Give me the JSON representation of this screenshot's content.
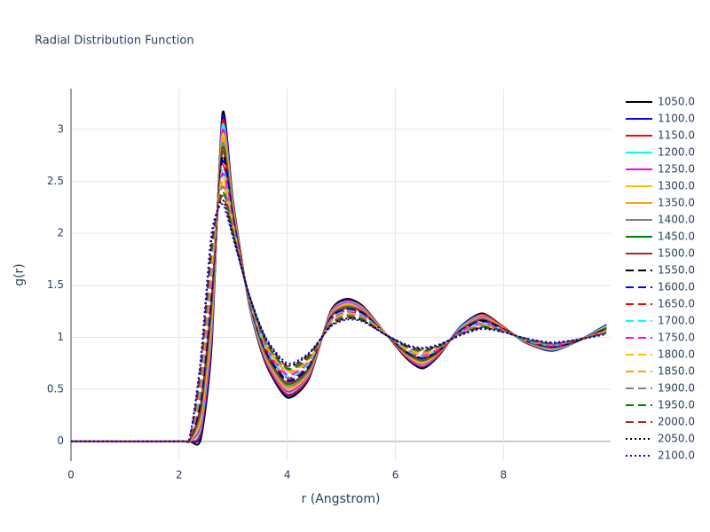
{
  "chart_data": {
    "type": "line",
    "title": "Radial Distribution Function",
    "x_label": "r (Angstrom)",
    "y_label": "g(r)",
    "xlim": [
      0,
      9.98
    ],
    "ylim": [
      -0.19,
      3.39
    ],
    "xticks": [
      0,
      2,
      4,
      6,
      8
    ],
    "yticks": [
      0,
      0.5,
      1,
      1.5,
      2,
      2.5,
      3
    ],
    "grid": true,
    "legend": "right",
    "x": [
      0,
      2,
      2.2,
      2.4,
      2.6,
      2.8,
      3.0,
      3.3,
      3.6,
      4.0,
      4.4,
      4.8,
      5.1,
      5.4,
      5.8,
      6.2,
      6.5,
      6.8,
      7.2,
      7.6,
      8.0,
      8.4,
      8.9,
      9.4,
      9.9
    ],
    "series": [
      {
        "name": "1050.0",
        "color": "#000000",
        "dash": "solid",
        "values": [
          0,
          0,
          0,
          0.02,
          0.9,
          3.15,
          2.3,
          1.3,
          0.75,
          0.42,
          0.6,
          1.25,
          1.37,
          1.3,
          1.05,
          0.8,
          0.7,
          0.82,
          1.1,
          1.23,
          1.1,
          0.95,
          0.87,
          0.97,
          1.12
        ]
      },
      {
        "name": "1100.0",
        "color": "#0000ff",
        "dash": "solid",
        "values": [
          0,
          0,
          0,
          0.06,
          0.95,
          3.11,
          2.28,
          1.3,
          0.76,
          0.44,
          0.61,
          1.24,
          1.36,
          1.29,
          1.05,
          0.81,
          0.71,
          0.83,
          1.1,
          1.22,
          1.1,
          0.95,
          0.87,
          0.97,
          1.12
        ]
      },
      {
        "name": "1150.0",
        "color": "#ff0000",
        "dash": "solid",
        "values": [
          0,
          0,
          0,
          0.09,
          1.0,
          3.07,
          2.27,
          1.31,
          0.77,
          0.45,
          0.62,
          1.24,
          1.35,
          1.29,
          1.05,
          0.81,
          0.72,
          0.83,
          1.09,
          1.22,
          1.1,
          0.95,
          0.88,
          0.97,
          1.11
        ]
      },
      {
        "name": "1200.0",
        "color": "#00ffff",
        "dash": "solid",
        "values": [
          0,
          0,
          0.01,
          0.13,
          1.06,
          3.03,
          2.25,
          1.31,
          0.79,
          0.47,
          0.64,
          1.23,
          1.34,
          1.28,
          1.05,
          0.82,
          0.73,
          0.84,
          1.09,
          1.21,
          1.09,
          0.96,
          0.88,
          0.97,
          1.11
        ]
      },
      {
        "name": "1250.0",
        "color": "#ff00ff",
        "dash": "solid",
        "values": [
          0,
          0,
          0.01,
          0.17,
          1.11,
          2.98,
          2.23,
          1.32,
          0.8,
          0.48,
          0.65,
          1.22,
          1.33,
          1.27,
          1.05,
          0.82,
          0.74,
          0.84,
          1.08,
          1.2,
          1.09,
          0.96,
          0.89,
          0.97,
          1.1
        ]
      },
      {
        "name": "1300.0",
        "color": "#ffc000",
        "dash": "solid",
        "values": [
          0,
          0,
          0.01,
          0.21,
          1.16,
          2.94,
          2.22,
          1.32,
          0.81,
          0.5,
          0.66,
          1.21,
          1.32,
          1.26,
          1.05,
          0.83,
          0.75,
          0.85,
          1.08,
          1.19,
          1.09,
          0.96,
          0.89,
          0.97,
          1.1
        ]
      },
      {
        "name": "1350.0",
        "color": "#ffa500",
        "dash": "solid",
        "values": [
          0,
          0,
          0.01,
          0.24,
          1.21,
          2.9,
          2.2,
          1.33,
          0.82,
          0.51,
          0.67,
          1.21,
          1.31,
          1.26,
          1.04,
          0.84,
          0.76,
          0.85,
          1.08,
          1.19,
          1.09,
          0.96,
          0.89,
          0.97,
          1.09
        ]
      },
      {
        "name": "1400.0",
        "color": "#808080",
        "dash": "solid",
        "values": [
          0,
          0,
          0.02,
          0.28,
          1.27,
          2.86,
          2.18,
          1.33,
          0.83,
          0.53,
          0.68,
          1.2,
          1.3,
          1.25,
          1.04,
          0.84,
          0.77,
          0.86,
          1.07,
          1.18,
          1.08,
          0.96,
          0.9,
          0.97,
          1.09
        ]
      },
      {
        "name": "1450.0",
        "color": "#008000",
        "dash": "solid",
        "values": [
          0,
          0,
          0.02,
          0.32,
          1.32,
          2.82,
          2.17,
          1.34,
          0.85,
          0.55,
          0.7,
          1.19,
          1.29,
          1.24,
          1.04,
          0.85,
          0.78,
          0.86,
          1.07,
          1.17,
          1.08,
          0.97,
          0.9,
          0.97,
          1.09
        ]
      },
      {
        "name": "1500.0",
        "color": "#a52a2a",
        "dash": "solid",
        "values": [
          0,
          0,
          0.02,
          0.35,
          1.37,
          2.78,
          2.15,
          1.34,
          0.86,
          0.56,
          0.71,
          1.19,
          1.28,
          1.24,
          1.04,
          0.86,
          0.79,
          0.87,
          1.07,
          1.17,
          1.08,
          0.97,
          0.9,
          0.97,
          1.08
        ]
      },
      {
        "name": "1550.0",
        "color": "#000000",
        "dash": "dash",
        "values": [
          0,
          0,
          0.02,
          0.39,
          1.42,
          2.74,
          2.13,
          1.35,
          0.87,
          0.58,
          0.72,
          1.18,
          1.27,
          1.23,
          1.04,
          0.86,
          0.8,
          0.87,
          1.06,
          1.16,
          1.08,
          0.97,
          0.91,
          0.97,
          1.08
        ]
      },
      {
        "name": "1600.0",
        "color": "#0000ff",
        "dash": "dash",
        "values": [
          0,
          0,
          0.03,
          0.43,
          1.48,
          2.69,
          2.12,
          1.35,
          0.88,
          0.59,
          0.73,
          1.17,
          1.27,
          1.22,
          1.04,
          0.87,
          0.8,
          0.88,
          1.06,
          1.15,
          1.07,
          0.97,
          0.91,
          0.98,
          1.07
        ]
      },
      {
        "name": "1650.0",
        "color": "#ff0000",
        "dash": "dash",
        "values": [
          0,
          0,
          0.03,
          0.47,
          1.53,
          2.65,
          2.1,
          1.36,
          0.89,
          0.61,
          0.74,
          1.16,
          1.26,
          1.21,
          1.04,
          0.87,
          0.81,
          0.88,
          1.05,
          1.14,
          1.07,
          0.97,
          0.92,
          0.98,
          1.07
        ]
      },
      {
        "name": "1700.0",
        "color": "#00ffff",
        "dash": "dash",
        "values": [
          0,
          0,
          0.03,
          0.5,
          1.58,
          2.61,
          2.08,
          1.36,
          0.9,
          0.62,
          0.75,
          1.16,
          1.25,
          1.21,
          1.04,
          0.88,
          0.82,
          0.89,
          1.05,
          1.14,
          1.07,
          0.97,
          0.92,
          0.98,
          1.06
        ]
      },
      {
        "name": "1750.0",
        "color": "#ff00ff",
        "dash": "dash",
        "values": [
          0,
          0,
          0.03,
          0.54,
          1.63,
          2.57,
          2.07,
          1.37,
          0.92,
          0.64,
          0.77,
          1.15,
          1.24,
          1.2,
          1.04,
          0.89,
          0.83,
          0.89,
          1.05,
          1.13,
          1.07,
          0.98,
          0.92,
          0.98,
          1.06
        ]
      },
      {
        "name": "1800.0",
        "color": "#ffc000",
        "dash": "dash",
        "values": [
          0,
          0,
          0.04,
          0.58,
          1.69,
          2.53,
          2.05,
          1.37,
          0.93,
          0.66,
          0.78,
          1.14,
          1.23,
          1.19,
          1.04,
          0.89,
          0.84,
          0.9,
          1.04,
          1.12,
          1.06,
          0.98,
          0.93,
          0.98,
          1.06
        ]
      },
      {
        "name": "1850.0",
        "color": "#ffa500",
        "dash": "dash",
        "values": [
          0,
          0,
          0.04,
          0.61,
          1.74,
          2.49,
          2.03,
          1.38,
          0.94,
          0.67,
          0.79,
          1.14,
          1.22,
          1.19,
          1.03,
          0.9,
          0.85,
          0.9,
          1.04,
          1.12,
          1.06,
          0.98,
          0.93,
          0.98,
          1.05
        ]
      },
      {
        "name": "1900.0",
        "color": "#808080",
        "dash": "dash",
        "values": [
          0,
          0,
          0.04,
          0.65,
          1.79,
          2.45,
          2.02,
          1.38,
          0.95,
          0.69,
          0.8,
          1.13,
          1.21,
          1.18,
          1.03,
          0.91,
          0.86,
          0.91,
          1.04,
          1.11,
          1.06,
          0.98,
          0.93,
          0.98,
          1.05
        ]
      },
      {
        "name": "1950.0",
        "color": "#008000",
        "dash": "dash",
        "values": [
          0,
          0,
          0.04,
          0.69,
          1.84,
          2.4,
          2.0,
          1.39,
          0.96,
          0.7,
          0.81,
          1.12,
          1.2,
          1.17,
          1.03,
          0.91,
          0.87,
          0.91,
          1.03,
          1.1,
          1.06,
          0.98,
          0.94,
          0.98,
          1.04
        ]
      },
      {
        "name": "2000.0",
        "color": "#a52a2a",
        "dash": "dash",
        "values": [
          0,
          0,
          0.05,
          0.73,
          1.9,
          2.36,
          1.98,
          1.39,
          0.98,
          0.72,
          0.83,
          1.11,
          1.19,
          1.16,
          1.03,
          0.92,
          0.88,
          0.92,
          1.03,
          1.09,
          1.05,
          0.99,
          0.94,
          0.98,
          1.04
        ]
      },
      {
        "name": "2050.0",
        "color": "#000000",
        "dash": "dot",
        "values": [
          0,
          0,
          0.05,
          0.76,
          1.95,
          2.32,
          1.97,
          1.4,
          0.99,
          0.73,
          0.84,
          1.11,
          1.18,
          1.16,
          1.03,
          0.92,
          0.89,
          0.92,
          1.02,
          1.09,
          1.05,
          0.99,
          0.95,
          0.98,
          1.03
        ]
      },
      {
        "name": "2100.0",
        "color": "#0000ff",
        "dash": "dot",
        "values": [
          0,
          0,
          0.05,
          0.8,
          2.0,
          2.28,
          1.95,
          1.4,
          1.0,
          0.75,
          0.85,
          1.1,
          1.17,
          1.15,
          1.03,
          0.93,
          0.9,
          0.93,
          1.02,
          1.08,
          1.05,
          0.99,
          0.95,
          0.98,
          1.03
        ]
      }
    ]
  }
}
